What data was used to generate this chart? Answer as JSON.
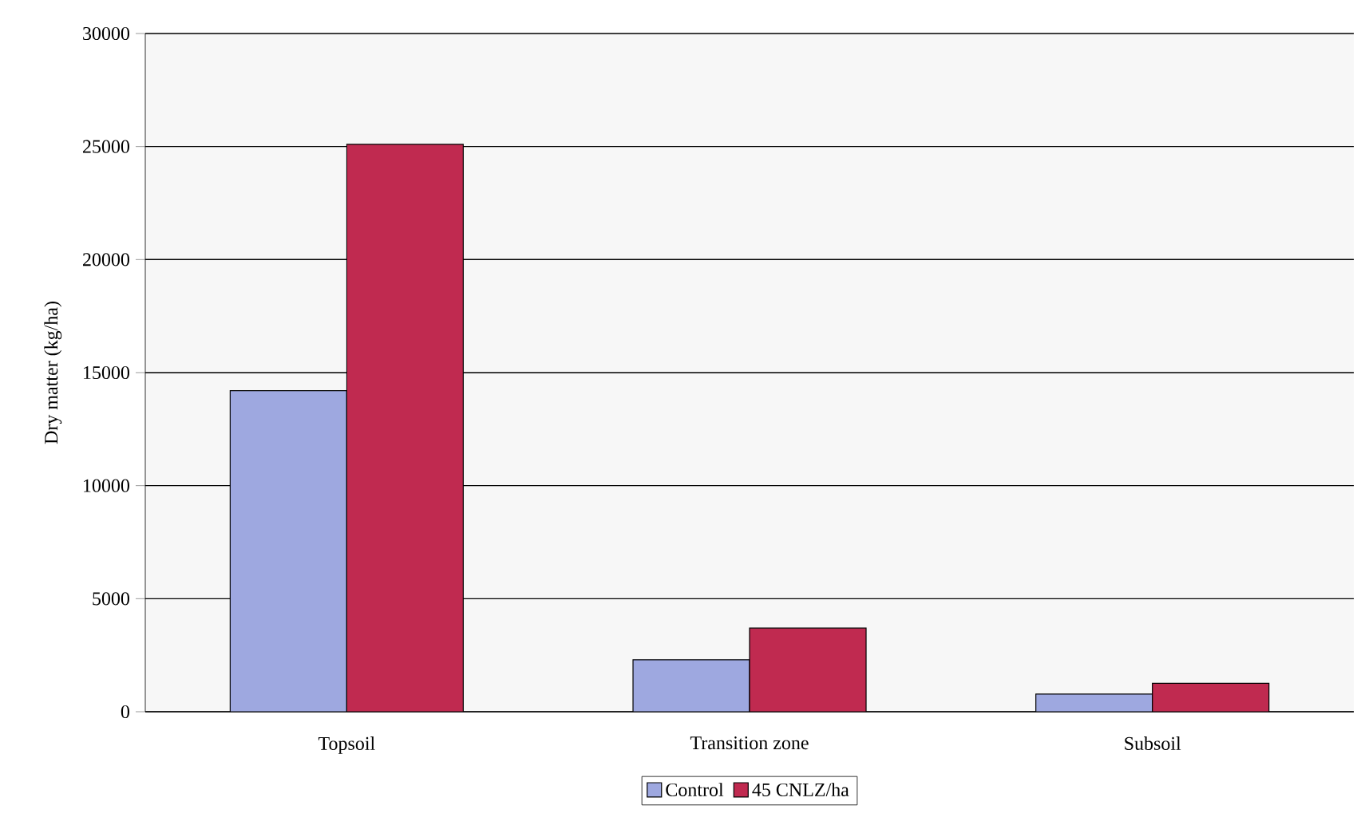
{
  "chart_data": {
    "type": "bar",
    "ylabel": "Dry matter (kg/ha)",
    "categories": [
      "Topsoil",
      "Transition zone",
      "Subsoil"
    ],
    "series": [
      {
        "name": "Control",
        "color": "#9ea8e0",
        "values": [
          14200,
          2300,
          780
        ]
      },
      {
        "name": "45 CNLZ/ha",
        "color": "#c02a50",
        "values": [
          25100,
          3700,
          1260
        ]
      }
    ],
    "ylim": [
      0,
      30000
    ],
    "yticks": [
      0,
      5000,
      10000,
      15000,
      20000,
      25000,
      30000
    ],
    "grid": "y",
    "legend": "bottom"
  }
}
